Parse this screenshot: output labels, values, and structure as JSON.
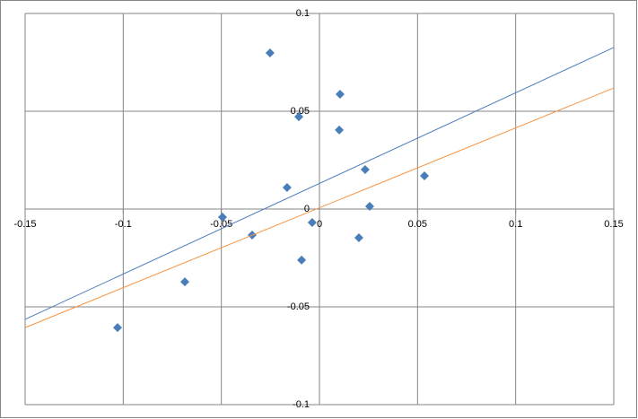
{
  "chart_data": {
    "type": "scatter",
    "series": [
      {
        "color": "#4a7ebb",
        "x": [
          -0.0252,
          0.0105,
          -0.0105,
          0.0101,
          0.0233,
          0.0535,
          -0.0165,
          0.0256,
          -0.0494,
          -0.0037,
          -0.0343,
          0.0201,
          -0.0091,
          -0.0686,
          -0.1029
        ],
        "y": [
          0.0798,
          0.0587,
          0.0472,
          0.0404,
          0.0202,
          0.017,
          0.011,
          0.0014,
          -0.0041,
          -0.0069,
          -0.0133,
          -0.0147,
          -0.0261,
          -0.0372,
          -0.0606
        ]
      }
    ],
    "lines": [
      {
        "color": "#4a7ebb",
        "x": [
          -0.15,
          0.15
        ],
        "y": [
          -0.0564,
          0.0826
        ]
      },
      {
        "color": "#f79646",
        "x": [
          -0.15,
          0.15
        ],
        "y": [
          -0.0606,
          0.0619
        ]
      }
    ],
    "xlim": [
      -0.15,
      0.15
    ],
    "ylim": [
      -0.1,
      0.1
    ],
    "xticks": [
      -0.15,
      -0.1,
      -0.05,
      0,
      0.05,
      0.1,
      0.15
    ],
    "yticks": [
      -0.1,
      -0.05,
      0,
      0.05,
      0.1
    ],
    "grid": true
  }
}
